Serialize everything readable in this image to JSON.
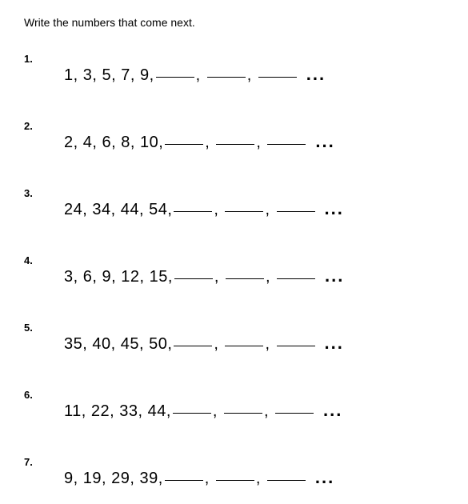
{
  "instruction": "Write the numbers that come next.",
  "problems": [
    {
      "number": "1.",
      "sequence": "1, 3, 5, 7, 9, "
    },
    {
      "number": "2.",
      "sequence": "2, 4, 6, 8, 10, "
    },
    {
      "number": "3.",
      "sequence": "24, 34, 44, 54, "
    },
    {
      "number": "4.",
      "sequence": "3, 6, 9, 12, 15, "
    },
    {
      "number": "5.",
      "sequence": "35, 40, 45, 50, "
    },
    {
      "number": "6.",
      "sequence": "11, 22, 33, 44, "
    },
    {
      "number": "7.",
      "sequence": "9, 19, 29, 39, "
    }
  ],
  "blanks_count": 3,
  "ellipsis": "...",
  "colors": {
    "text": "#000000",
    "background": "#ffffff"
  },
  "typography": {
    "instruction_fontsize": 14,
    "number_fontsize": 13,
    "sequence_fontsize": 20
  }
}
